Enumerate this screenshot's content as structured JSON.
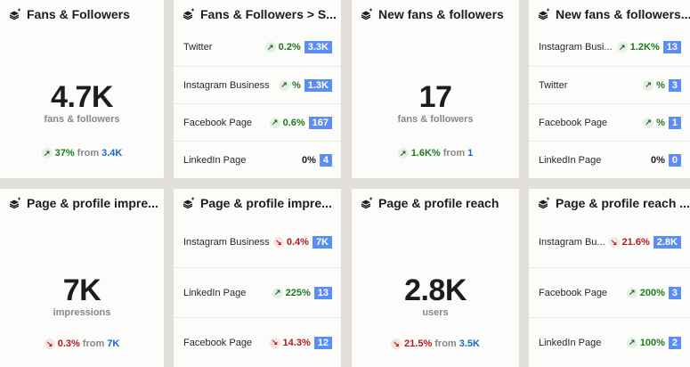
{
  "colors": {
    "up": "#1d7a1d",
    "down": "#b51b1b",
    "badge": "#5c8df5",
    "link": "#1a66cc"
  },
  "icons": {
    "widget": "layers-sparkle-icon",
    "up": "arrow-up-right-icon",
    "down": "arrow-down-right-icon"
  },
  "summary": [
    {
      "title": "Fans & Followers",
      "value": "4.7K",
      "unit": "fans & followers",
      "dir": "up",
      "pct": "37%",
      "from_label": "from",
      "from": "3.4K"
    },
    {
      "title": "New fans & followers",
      "value": "17",
      "unit": "fans & followers",
      "dir": "up",
      "pct": "1.6K%",
      "from_label": "from",
      "from": "1"
    },
    {
      "title": "Page & profile impre...",
      "value": "7K",
      "unit": "impressions",
      "dir": "down",
      "pct": "0.3%",
      "from_label": "from",
      "from": "7K"
    },
    {
      "title": "Page & profile reach",
      "value": "2.8K",
      "unit": "users",
      "dir": "down",
      "pct": "21.5%",
      "from_label": "from",
      "from": "3.5K"
    }
  ],
  "lists": [
    {
      "title": "Fans & Followers > S...",
      "rows": [
        {
          "name": "Twitter",
          "dir": "up",
          "pct": "0.2%",
          "value": "3.3K"
        },
        {
          "name": "Instagram Business",
          "dir": "up",
          "pct": "%",
          "value": "1.3K"
        },
        {
          "name": "Facebook Page",
          "dir": "up",
          "pct": "0.6%",
          "value": "167"
        },
        {
          "name": "LinkedIn Page",
          "dir": "neutral",
          "pct": "0%",
          "value": "4"
        }
      ]
    },
    {
      "title": "New fans & followers...",
      "rows": [
        {
          "name": "Instagram Busi...",
          "dir": "up",
          "pct": "1.2K%",
          "value": "13"
        },
        {
          "name": "Twitter",
          "dir": "up",
          "pct": "%",
          "value": "3"
        },
        {
          "name": "Facebook Page",
          "dir": "up",
          "pct": "%",
          "value": "1"
        },
        {
          "name": "LinkedIn Page",
          "dir": "neutral",
          "pct": "0%",
          "value": "0"
        }
      ]
    },
    {
      "title": "Page & profile impre...",
      "rows": [
        {
          "name": "Instagram Business",
          "dir": "down",
          "pct": "0.4%",
          "value": "7K"
        },
        {
          "name": "LinkedIn Page",
          "dir": "up",
          "pct": "225%",
          "value": "13"
        },
        {
          "name": "Facebook Page",
          "dir": "down",
          "pct": "14.3%",
          "value": "12"
        }
      ]
    },
    {
      "title": "Page & profile reach ...",
      "rows": [
        {
          "name": "Instagram Bu...",
          "dir": "down",
          "pct": "21.6%",
          "value": "2.8K"
        },
        {
          "name": "Facebook Page",
          "dir": "up",
          "pct": "200%",
          "value": "3"
        },
        {
          "name": "LinkedIn Page",
          "dir": "up",
          "pct": "100%",
          "value": "2"
        }
      ]
    }
  ]
}
